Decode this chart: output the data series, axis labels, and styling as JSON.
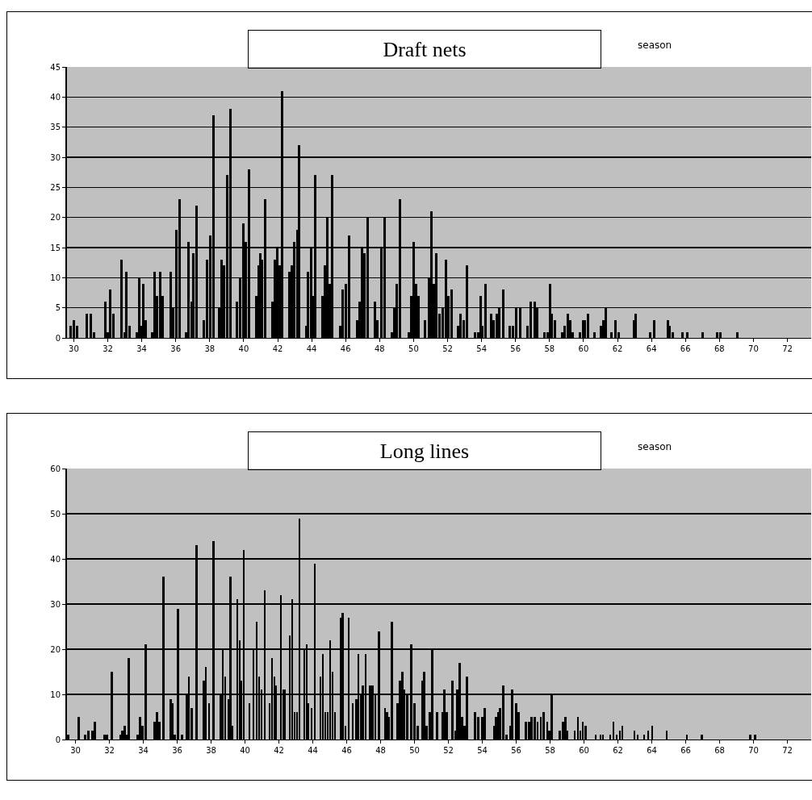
{
  "chart_data": [
    {
      "type": "bar",
      "title": "Draft nets",
      "annotations": [
        "season"
      ],
      "color": "#000000",
      "x": [
        29.81,
        30.0,
        30.19,
        30.76,
        31.0,
        31.19,
        31.86,
        32.0,
        32.14,
        32.33,
        32.81,
        33.0,
        33.09,
        33.28,
        33.71,
        33.85,
        34.0,
        34.09,
        34.23,
        34.61,
        34.76,
        34.9,
        35.09,
        35.23,
        35.71,
        35.85,
        36.04,
        36.23,
        36.61,
        36.75,
        36.94,
        37.04,
        37.23,
        37.65,
        37.84,
        38.03,
        38.22,
        38.56,
        38.7,
        38.84,
        39.03,
        39.22,
        39.6,
        39.79,
        39.98,
        40.12,
        40.31,
        40.74,
        40.88,
        40.98,
        41.07,
        41.26,
        41.69,
        41.83,
        41.98,
        42.12,
        42.26,
        42.69,
        42.83,
        42.97,
        43.16,
        43.26,
        43.69,
        43.78,
        43.97,
        44.07,
        44.21,
        44.64,
        44.78,
        44.92,
        45.06,
        45.21,
        45.68,
        45.82,
        46.01,
        46.2,
        46.68,
        46.82,
        46.96,
        47.11,
        47.3,
        47.72,
        47.87,
        48.1,
        48.29,
        48.72,
        48.86,
        49.01,
        49.2,
        49.72,
        49.86,
        50.0,
        50.15,
        50.29,
        50.67,
        50.91,
        51.05,
        51.19,
        51.33,
        51.52,
        51.71,
        51.9,
        52.05,
        52.24,
        52.62,
        52.76,
        52.95,
        53.14,
        53.62,
        53.81,
        53.95,
        54.04,
        54.23,
        54.57,
        54.71,
        54.9,
        55.04,
        55.28,
        55.66,
        55.85,
        56.04,
        56.28,
        56.7,
        56.89,
        57.13,
        57.27,
        57.7,
        57.89,
        58.03,
        58.13,
        58.32,
        58.75,
        58.89,
        59.08,
        59.22,
        59.36,
        59.79,
        59.98,
        60.08,
        60.27,
        60.65,
        61.03,
        61.17,
        61.31,
        61.64,
        61.88,
        62.07,
        62.97,
        63.07,
        63.92,
        64.16,
        64.97,
        65.06,
        65.25,
        65.82,
        66.11,
        67.01,
        67.87,
        68.06,
        69.05
      ],
      "values": [
        2,
        3,
        2,
        4,
        4,
        1,
        6,
        1,
        8,
        4,
        13,
        1,
        11,
        2,
        1,
        10,
        2,
        9,
        3,
        1,
        11,
        7,
        11,
        7,
        11,
        5,
        18,
        23,
        1,
        16,
        6,
        14,
        22,
        3,
        13,
        17,
        37,
        5,
        13,
        12,
        27,
        38,
        6,
        10,
        19,
        16,
        28,
        7,
        12,
        14,
        13,
        23,
        6,
        13,
        15,
        12,
        41,
        11,
        12,
        16,
        18,
        32,
        2,
        11,
        15,
        7,
        27,
        7,
        12,
        20,
        9,
        27,
        2,
        8,
        9,
        17,
        3,
        6,
        15,
        14,
        20,
        6,
        3,
        15,
        20,
        1,
        5,
        9,
        23,
        1,
        7,
        16,
        9,
        7,
        3,
        10,
        21,
        9,
        14,
        4,
        5,
        13,
        7,
        8,
        2,
        4,
        3,
        12,
        1,
        1,
        7,
        2,
        9,
        4,
        3,
        4,
        5,
        8,
        2,
        2,
        5,
        5,
        2,
        6,
        6,
        5,
        1,
        1,
        9,
        4,
        3,
        1,
        2,
        4,
        3,
        1,
        1,
        3,
        3,
        4,
        1,
        2,
        3,
        5,
        1,
        3,
        1,
        3,
        4,
        1,
        3,
        3,
        2,
        1,
        1,
        1,
        1,
        1,
        1,
        1
      ],
      "xlim": [
        29.6,
        73.4
      ],
      "xticks": [
        30,
        32,
        34,
        36,
        38,
        40,
        42,
        44,
        46,
        48,
        50,
        52,
        54,
        56,
        58,
        60,
        62,
        64,
        66,
        68,
        70,
        72
      ],
      "ylim": [
        0,
        45
      ],
      "yticks": [
        0,
        5,
        10,
        15,
        20,
        25,
        30,
        35,
        40,
        45
      ],
      "grid": "y"
    },
    {
      "type": "bar",
      "title": "Long lines",
      "annotations": [
        "season"
      ],
      "color": "#000000",
      "x": [
        29.58,
        30.19,
        30.57,
        30.76,
        31.0,
        31.14,
        31.71,
        31.86,
        32.14,
        32.67,
        32.76,
        32.9,
        33.02,
        33.14,
        33.66,
        33.81,
        33.95,
        34.14,
        34.66,
        34.8,
        34.95,
        35.18,
        35.61,
        35.71,
        35.85,
        36.04,
        36.28,
        36.56,
        36.7,
        36.85,
        37.13,
        37.56,
        37.7,
        37.89,
        38.13,
        38.56,
        38.7,
        38.84,
        39.03,
        39.13,
        39.27,
        39.55,
        39.7,
        39.79,
        39.93,
        40.27,
        40.5,
        40.69,
        40.84,
        40.98,
        41.17,
        41.45,
        41.6,
        41.74,
        41.83,
        42.12,
        42.26,
        42.36,
        42.64,
        42.78,
        42.93,
        43.07,
        43.21,
        43.5,
        43.64,
        43.73,
        43.92,
        44.11,
        44.45,
        44.59,
        44.73,
        44.87,
        45.02,
        45.16,
        45.3,
        45.63,
        45.77,
        45.92,
        46.11,
        46.35,
        46.58,
        46.68,
        46.82,
        46.96,
        47.11,
        47.39,
        47.53,
        47.68,
        47.91,
        48.25,
        48.39,
        48.49,
        48.67,
        49.01,
        49.15,
        49.29,
        49.39,
        49.58,
        49.81,
        50.0,
        50.19,
        50.48,
        50.57,
        50.72,
        50.91,
        51.05,
        51.34,
        51.67,
        51.76,
        51.9,
        52.24,
        52.43,
        52.52,
        52.67,
        52.81,
        52.95,
        53.09,
        53.57,
        53.76,
        54.0,
        54.14,
        54.71,
        54.8,
        54.95,
        55.04,
        55.23,
        55.42,
        55.66,
        55.75,
        55.99,
        56.13,
        56.56,
        56.75,
        56.89,
        57.08,
        57.27,
        57.46,
        57.61,
        57.84,
        57.94,
        58.08,
        58.56,
        58.75,
        58.89,
        59.03,
        59.46,
        59.65,
        59.79,
        59.93,
        60.08,
        60.69,
        60.98,
        61.12,
        61.55,
        61.74,
        61.93,
        62.12,
        62.26,
        62.97,
        63.16,
        63.54,
        63.78,
        64.02,
        64.87,
        66.06,
        66.96,
        69.81,
        70.1
      ],
      "values": [
        1,
        5,
        1,
        2,
        2,
        4,
        1,
        1,
        15,
        1,
        2,
        3,
        1,
        18,
        1,
        5,
        3,
        21,
        4,
        6,
        4,
        36,
        9,
        8,
        1,
        29,
        1,
        10,
        14,
        7,
        43,
        13,
        16,
        8,
        44,
        10,
        20,
        14,
        9,
        36,
        3,
        31,
        22,
        13,
        42,
        8,
        20,
        26,
        14,
        11,
        33,
        8,
        18,
        14,
        12,
        32,
        11,
        11,
        23,
        31,
        6,
        6,
        49,
        20,
        21,
        8,
        7,
        39,
        14,
        19,
        6,
        6,
        22,
        15,
        6,
        27,
        28,
        3,
        27,
        8,
        9,
        19,
        10,
        12,
        19,
        12,
        12,
        10,
        24,
        7,
        6,
        5,
        26,
        8,
        13,
        15,
        11,
        10,
        21,
        8,
        3,
        13,
        15,
        3,
        6,
        20,
        6,
        6,
        11,
        6,
        13,
        2,
        11,
        17,
        5,
        3,
        14,
        6,
        5,
        5,
        7,
        3,
        5,
        6,
        7,
        12,
        1,
        3,
        11,
        8,
        6,
        4,
        4,
        5,
        5,
        4,
        5,
        6,
        4,
        2,
        10,
        2,
        4,
        5,
        2,
        2,
        5,
        2,
        4,
        3,
        1,
        1,
        1,
        1,
        4,
        1,
        2,
        3,
        2,
        1,
        1,
        2,
        3,
        2,
        1,
        1,
        1,
        1
      ],
      "xlim": [
        29.5,
        73.4
      ],
      "xticks": [
        30,
        32,
        34,
        36,
        38,
        40,
        42,
        44,
        46,
        48,
        50,
        52,
        54,
        56,
        58,
        60,
        62,
        64,
        66,
        68,
        70,
        72
      ],
      "ylim": [
        0,
        60
      ],
      "yticks": [
        0,
        10,
        20,
        30,
        40,
        50,
        60
      ],
      "grid": "y"
    }
  ]
}
